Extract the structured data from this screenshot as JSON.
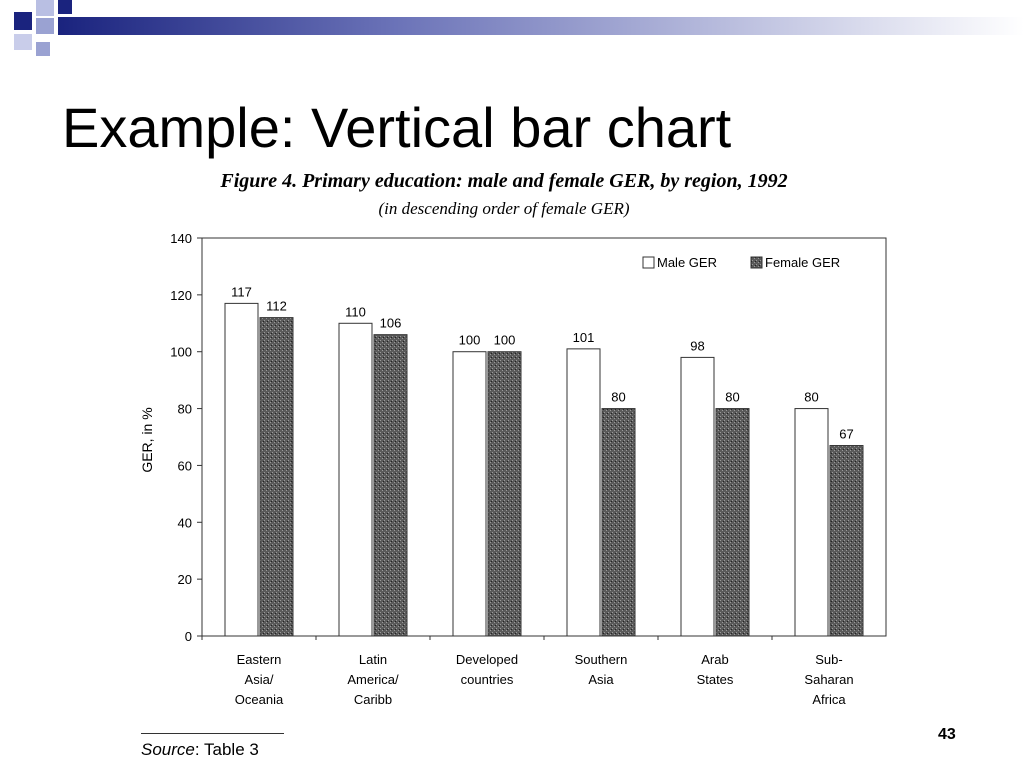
{
  "slide": {
    "title": "Example: Vertical bar chart",
    "page_number": "43",
    "source_label": "Source",
    "source_value": ": Table 3",
    "colors": {
      "deco_primary": "#1a237e",
      "deco_secondary": "#9aa2d2"
    }
  },
  "chart_data": {
    "type": "bar",
    "title": "Figure 4. Primary education: male and female GER, by region, 1992",
    "subtitle": "(in descending order of female GER)",
    "ylabel": "GER, in %",
    "xlabel": "",
    "ylim": [
      0,
      140
    ],
    "yticks": [
      0,
      20,
      40,
      60,
      80,
      100,
      120,
      140
    ],
    "legend_position": "top-right",
    "categories": [
      [
        "Eastern",
        "Asia/",
        "Oceania"
      ],
      [
        "Latin",
        "America/",
        "Caribb"
      ],
      [
        "Developed",
        "countries"
      ],
      [
        "Southern",
        "Asia"
      ],
      [
        "Arab",
        "States"
      ],
      [
        "Sub-",
        "Saharan",
        "Africa"
      ]
    ],
    "series": [
      {
        "name": "Male GER",
        "values": [
          117,
          110,
          100,
          101,
          98,
          80
        ],
        "color": "#ffffff"
      },
      {
        "name": "Female GER",
        "values": [
          112,
          106,
          100,
          80,
          80,
          67
        ],
        "color": "#5a5a5a"
      }
    ]
  }
}
